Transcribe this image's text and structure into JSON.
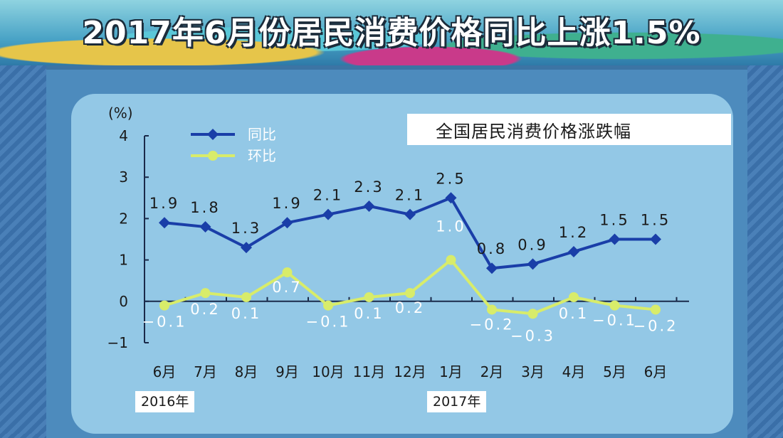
{
  "page": {
    "title": "2017年6月份居民消费价格同比上涨1.5%"
  },
  "chart_data": {
    "type": "line",
    "title": "全国居民消费价格涨跌幅",
    "ylabel": "(%)",
    "ylim": [
      -1,
      4
    ],
    "yticks": [
      4,
      3,
      2,
      1,
      0,
      -1
    ],
    "categories": [
      "6月",
      "7月",
      "8月",
      "9月",
      "10月",
      "11月",
      "12月",
      "1月",
      "2月",
      "3月",
      "4月",
      "5月",
      "6月"
    ],
    "year_labels": [
      "2016年",
      "2017年"
    ],
    "series": [
      {
        "name": "同比",
        "color": "#1a3ea8",
        "values": [
          1.9,
          1.8,
          1.3,
          1.9,
          2.1,
          2.3,
          2.1,
          2.5,
          0.8,
          0.9,
          1.2,
          1.5,
          1.5
        ],
        "labels": [
          "1.9",
          "1.8",
          "1.3",
          "1.9",
          "2.1",
          "2.3",
          "2.1",
          "2.5",
          "0.8",
          "0.9",
          "1.2",
          "1.5",
          "1.5"
        ]
      },
      {
        "name": "环比",
        "color": "#d8ec6a",
        "values": [
          -0.1,
          0.2,
          0.1,
          0.7,
          -0.1,
          0.1,
          0.2,
          1.0,
          -0.2,
          -0.3,
          0.1,
          -0.1,
          -0.2
        ],
        "labels": [
          "−0.1",
          "0.2",
          "0.1",
          "0.7",
          "−0.1",
          "0.1",
          "0.2",
          "1.0",
          "−0.2",
          "−0.3",
          "0.1",
          "−0.1",
          "−0.2"
        ]
      }
    ],
    "grid": false,
    "legend_position": "top-left"
  }
}
